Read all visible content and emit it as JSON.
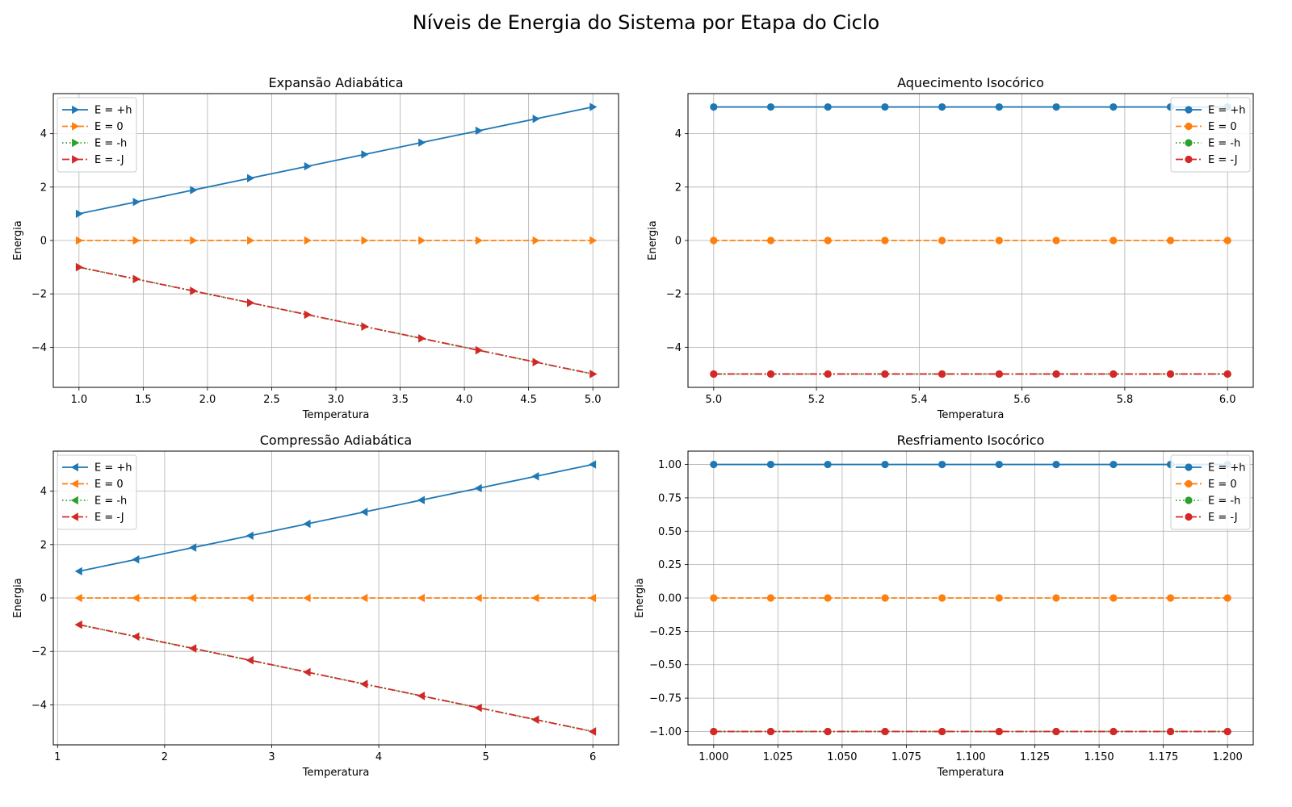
{
  "title": "Níveis de Energia do Sistema por Etapa do Ciclo",
  "colors": {
    "blue": "#1f77b4",
    "orange": "#ff7f0e",
    "green": "#2ca02c",
    "red": "#d62728",
    "grid": "#b0b0b0"
  },
  "chart_data": [
    {
      "type": "line",
      "title": "Expansão Adiabática",
      "xlabel": "Temperatura",
      "ylabel": "Energia",
      "marker": "triangle-right",
      "x": [
        1.0,
        1.4444,
        1.8889,
        2.3333,
        2.7778,
        3.2222,
        3.6667,
        4.1111,
        4.5556,
        5.0
      ],
      "xlim": [
        0.8,
        5.2
      ],
      "ylim": [
        -5.5,
        5.5
      ],
      "xticks": [
        1.0,
        1.5,
        2.0,
        2.5,
        3.0,
        3.5,
        4.0,
        4.5,
        5.0
      ],
      "xtick_labels": [
        "1.0",
        "1.5",
        "2.0",
        "2.5",
        "3.0",
        "3.5",
        "4.0",
        "4.5",
        "5.0"
      ],
      "yticks": [
        -4,
        -2,
        0,
        2,
        4
      ],
      "ytick_labels": [
        "−4",
        "−2",
        "0",
        "2",
        "4"
      ],
      "grid": true,
      "legend_position": "upper-left",
      "series": [
        {
          "name": "E = +h",
          "color": "blue",
          "dash": "solid",
          "values": [
            1.0,
            1.4444,
            1.8889,
            2.3333,
            2.7778,
            3.2222,
            3.6667,
            4.1111,
            4.5556,
            5.0
          ]
        },
        {
          "name": "E = 0",
          "color": "orange",
          "dash": "dashed",
          "values": [
            0,
            0,
            0,
            0,
            0,
            0,
            0,
            0,
            0,
            0
          ]
        },
        {
          "name": "E = -h",
          "color": "green",
          "dash": "dotted",
          "values": [
            -1.0,
            -1.4444,
            -1.8889,
            -2.3333,
            -2.7778,
            -3.2222,
            -3.6667,
            -4.1111,
            -4.5556,
            -5.0
          ]
        },
        {
          "name": "E = -J",
          "color": "red",
          "dash": "dashdot",
          "values": [
            -1.0,
            -1.4444,
            -1.8889,
            -2.3333,
            -2.7778,
            -3.2222,
            -3.6667,
            -4.1111,
            -4.5556,
            -5.0
          ]
        }
      ]
    },
    {
      "type": "line",
      "title": "Aquecimento Isocórico",
      "xlabel": "Temperatura",
      "ylabel": "Energia",
      "marker": "circle",
      "x": [
        5.0,
        5.1111,
        5.2222,
        5.3333,
        5.4444,
        5.5556,
        5.6667,
        5.7778,
        5.8889,
        6.0
      ],
      "xlim": [
        4.95,
        6.05
      ],
      "ylim": [
        -5.5,
        5.5
      ],
      "xticks": [
        5.0,
        5.2,
        5.4,
        5.6,
        5.8,
        6.0
      ],
      "xtick_labels": [
        "5.0",
        "5.2",
        "5.4",
        "5.6",
        "5.8",
        "6.0"
      ],
      "yticks": [
        -4,
        -2,
        0,
        2,
        4
      ],
      "ytick_labels": [
        "−4",
        "−2",
        "0",
        "2",
        "4"
      ],
      "grid": true,
      "legend_position": "upper-right",
      "series": [
        {
          "name": "E = +h",
          "color": "blue",
          "dash": "solid",
          "values": [
            5,
            5,
            5,
            5,
            5,
            5,
            5,
            5,
            5,
            5
          ]
        },
        {
          "name": "E = 0",
          "color": "orange",
          "dash": "dashed",
          "values": [
            0,
            0,
            0,
            0,
            0,
            0,
            0,
            0,
            0,
            0
          ]
        },
        {
          "name": "E = -h",
          "color": "green",
          "dash": "dotted",
          "values": [
            -5,
            -5,
            -5,
            -5,
            -5,
            -5,
            -5,
            -5,
            -5,
            -5
          ]
        },
        {
          "name": "E = -J",
          "color": "red",
          "dash": "dashdot",
          "values": [
            -5,
            -5,
            -5,
            -5,
            -5,
            -5,
            -5,
            -5,
            -5,
            -5
          ]
        }
      ]
    },
    {
      "type": "line",
      "title": "Compressão Adiabática",
      "xlabel": "Temperatura",
      "ylabel": "Energia",
      "marker": "triangle-left",
      "x": [
        1.2,
        1.7333,
        2.2667,
        2.8,
        3.3333,
        3.8667,
        4.4,
        4.9333,
        5.4667,
        6.0
      ],
      "xlim": [
        0.96,
        6.24
      ],
      "ylim": [
        -5.5,
        5.5
      ],
      "xticks": [
        1,
        2,
        3,
        4,
        5,
        6
      ],
      "xtick_labels": [
        "1",
        "2",
        "3",
        "4",
        "5",
        "6"
      ],
      "yticks": [
        -4,
        -2,
        0,
        2,
        4
      ],
      "ytick_labels": [
        "−4",
        "−2",
        "0",
        "2",
        "4"
      ],
      "grid": true,
      "legend_position": "upper-left",
      "series": [
        {
          "name": "E = +h",
          "color": "blue",
          "dash": "solid",
          "values": [
            1.0,
            1.4444,
            1.8889,
            2.3333,
            2.7778,
            3.2222,
            3.6667,
            4.1111,
            4.5556,
            5.0
          ]
        },
        {
          "name": "E = 0",
          "color": "orange",
          "dash": "dashed",
          "values": [
            0,
            0,
            0,
            0,
            0,
            0,
            0,
            0,
            0,
            0
          ]
        },
        {
          "name": "E = -h",
          "color": "green",
          "dash": "dotted",
          "values": [
            -1.0,
            -1.4444,
            -1.8889,
            -2.3333,
            -2.7778,
            -3.2222,
            -3.6667,
            -4.1111,
            -4.5556,
            -5.0
          ]
        },
        {
          "name": "E = -J",
          "color": "red",
          "dash": "dashdot",
          "values": [
            -1.0,
            -1.4444,
            -1.8889,
            -2.3333,
            -2.7778,
            -3.2222,
            -3.6667,
            -4.1111,
            -4.5556,
            -5.0
          ]
        }
      ]
    },
    {
      "type": "line",
      "title": "Resfriamento Isocórico",
      "xlabel": "Temperatura",
      "ylabel": "Energia",
      "marker": "circle",
      "x": [
        1.0,
        1.0222,
        1.0444,
        1.0667,
        1.0889,
        1.1111,
        1.1333,
        1.1556,
        1.1778,
        1.2
      ],
      "xlim": [
        0.99,
        1.21
      ],
      "ylim": [
        -1.1,
        1.1
      ],
      "xticks": [
        1.0,
        1.025,
        1.05,
        1.075,
        1.1,
        1.125,
        1.15,
        1.175,
        1.2
      ],
      "xtick_labels": [
        "1.000",
        "1.025",
        "1.050",
        "1.075",
        "1.100",
        "1.125",
        "1.150",
        "1.175",
        "1.200"
      ],
      "yticks": [
        -1.0,
        -0.75,
        -0.5,
        -0.25,
        0.0,
        0.25,
        0.5,
        0.75,
        1.0
      ],
      "ytick_labels": [
        "−1.00",
        "−0.75",
        "−0.50",
        "−0.25",
        "0.00",
        "0.25",
        "0.50",
        "0.75",
        "1.00"
      ],
      "grid": true,
      "legend_position": "upper-right",
      "series": [
        {
          "name": "E = +h",
          "color": "blue",
          "dash": "solid",
          "values": [
            1,
            1,
            1,
            1,
            1,
            1,
            1,
            1,
            1,
            1
          ]
        },
        {
          "name": "E = 0",
          "color": "orange",
          "dash": "dashed",
          "values": [
            0,
            0,
            0,
            0,
            0,
            0,
            0,
            0,
            0,
            0
          ]
        },
        {
          "name": "E = -h",
          "color": "green",
          "dash": "dotted",
          "values": [
            -1,
            -1,
            -1,
            -1,
            -1,
            -1,
            -1,
            -1,
            -1,
            -1
          ]
        },
        {
          "name": "E = -J",
          "color": "red",
          "dash": "dashdot",
          "values": [
            -1,
            -1,
            -1,
            -1,
            -1,
            -1,
            -1,
            -1,
            -1,
            -1
          ]
        }
      ]
    }
  ]
}
